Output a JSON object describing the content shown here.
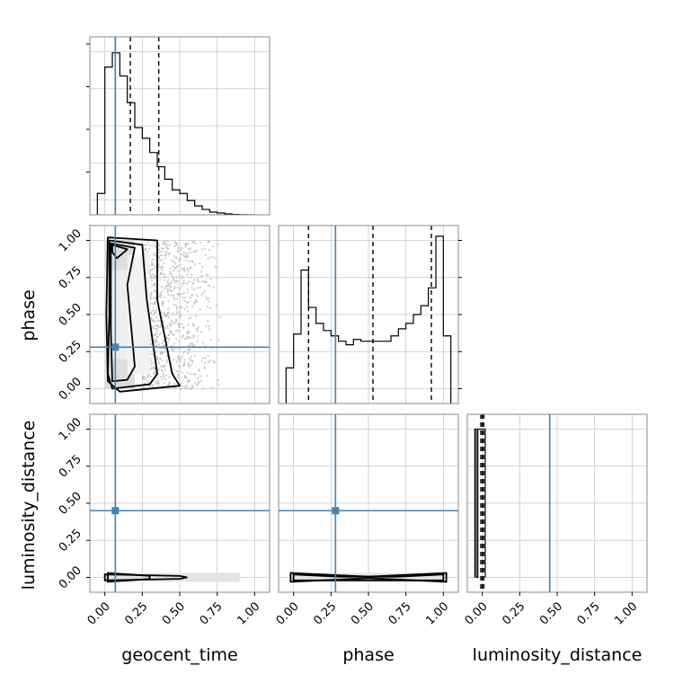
{
  "chart_data": {
    "type": "corner",
    "parameters": [
      "geocent_time",
      "phase",
      "luminosity_distance"
    ],
    "axis_range": [
      -0.1,
      1.1
    ],
    "ticks": [
      0.0,
      0.25,
      0.5,
      0.75,
      1.0
    ],
    "tick_labels": [
      "0.00",
      "0.25",
      "0.50",
      "0.75",
      "1.00"
    ],
    "grid": true,
    "truths": {
      "color": "#4682b4",
      "geocent_time": 0.07,
      "phase": 0.28,
      "luminosity_distance": 0.45
    },
    "histograms": [
      {
        "parameter": "geocent_time",
        "bin_edges": [
          -0.05,
          0.0,
          0.05,
          0.1,
          0.15,
          0.2,
          0.25,
          0.3,
          0.35,
          0.4,
          0.45,
          0.5,
          0.55,
          0.6,
          0.65,
          0.7,
          0.75,
          0.8,
          0.85,
          0.9,
          0.95,
          1.0
        ],
        "counts": [
          0.12,
          0.83,
          0.91,
          0.78,
          0.63,
          0.49,
          0.43,
          0.35,
          0.27,
          0.2,
          0.14,
          0.12,
          0.08,
          0.05,
          0.03,
          0.015,
          0.01,
          0.005,
          0.002,
          0.001,
          0.0
        ],
        "ylim": [
          0,
          1.0
        ],
        "quantiles": [
          0.07,
          0.17,
          0.36
        ]
      },
      {
        "parameter": "phase",
        "bin_edges": [
          -0.05,
          0.0,
          0.05,
          0.1,
          0.15,
          0.2,
          0.25,
          0.3,
          0.35,
          0.4,
          0.45,
          0.5,
          0.55,
          0.6,
          0.65,
          0.7,
          0.75,
          0.8,
          0.85,
          0.9,
          0.95,
          1.0,
          1.05
        ],
        "counts": [
          0.2,
          0.39,
          0.75,
          0.54,
          0.45,
          0.41,
          0.38,
          0.35,
          0.33,
          0.36,
          0.35,
          0.35,
          0.35,
          0.35,
          0.38,
          0.42,
          0.45,
          0.5,
          0.55,
          0.65,
          0.94,
          0.38
        ],
        "ylim": [
          0,
          1.0
        ],
        "quantiles": [
          0.1,
          0.53,
          0.92
        ]
      },
      {
        "parameter": "luminosity_distance",
        "bin_edges": [
          -0.05,
          -0.04,
          -0.03,
          -0.02,
          -0.01,
          0.0,
          0.01,
          0.02
        ],
        "counts": [
          1.0,
          0.0,
          1.0,
          1.0,
          1.0,
          1.0,
          1.0
        ],
        "ylim": [
          -0.1,
          1.1
        ],
        "quantiles": [
          -0.01,
          0.0,
          0.01
        ]
      }
    ]
  }
}
